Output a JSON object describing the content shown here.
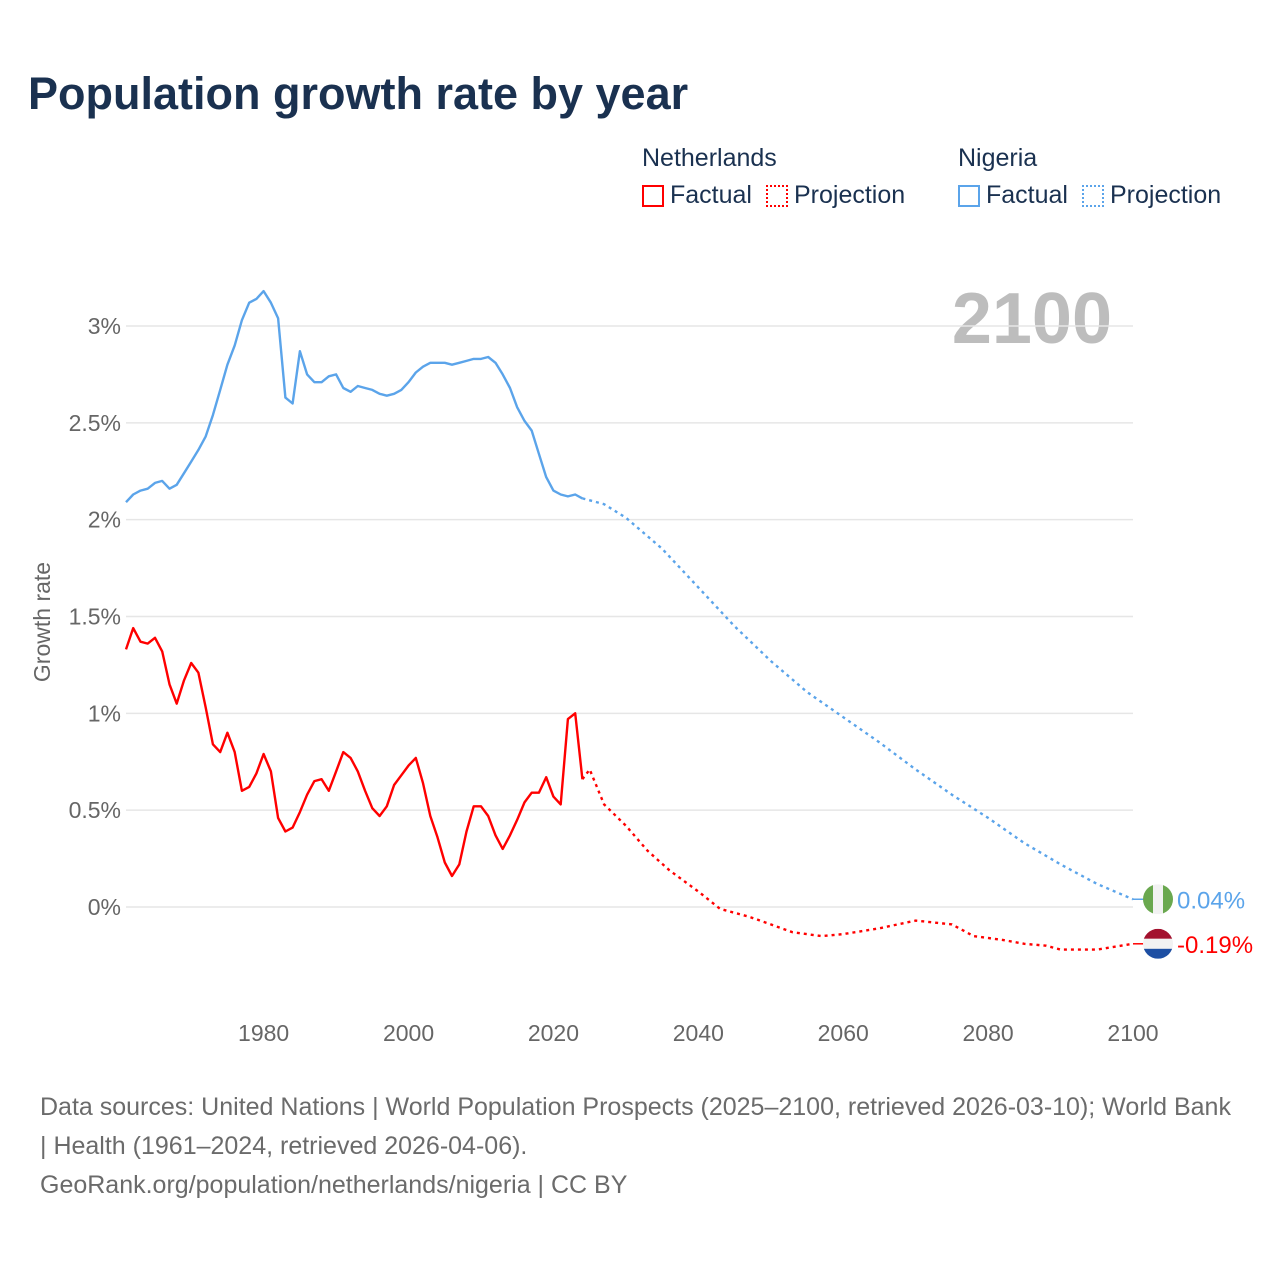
{
  "title": "Population growth rate by year",
  "legend": [
    {
      "group": "Netherlands",
      "items": [
        {
          "label": "Factual",
          "style": "solid"
        },
        {
          "label": "Projection",
          "style": "dotted"
        }
      ],
      "color": "#ff0000"
    },
    {
      "group": "Nigeria",
      "items": [
        {
          "label": "Factual",
          "style": "solid"
        },
        {
          "label": "Projection",
          "style": "dotted"
        }
      ],
      "color": "#5ba4ea"
    }
  ],
  "year_label": "2100",
  "footer": {
    "sources": "Data sources: United Nations | World Population Prospects (2025–2100, retrieved 2026-03-10); World Bank | Health (1961–2024, retrieved 2026-04-06).",
    "credit": "GeoRank.org/population/netherlands/nigeria | CC BY"
  },
  "chart_data": {
    "type": "line",
    "title": "Population growth rate by year",
    "xlabel": "",
    "ylabel": "Growth rate",
    "xlim": [
      1961,
      2100
    ],
    "ylim": [
      -0.5,
      3.3
    ],
    "grid": true,
    "x_ticks": [
      {
        "value": 1980,
        "label": "1980"
      },
      {
        "value": 2000,
        "label": "2000"
      },
      {
        "value": 2020,
        "label": "2020"
      },
      {
        "value": 2040,
        "label": "2040"
      },
      {
        "value": 2060,
        "label": "2060"
      },
      {
        "value": 2080,
        "label": "2080"
      },
      {
        "value": 2100,
        "label": "2100"
      }
    ],
    "y_ticks": [
      {
        "value": 0,
        "label": "0%"
      },
      {
        "value": 0.5,
        "label": "0.5%"
      },
      {
        "value": 1,
        "label": "1%"
      },
      {
        "value": 1.5,
        "label": "1.5%"
      },
      {
        "value": 2,
        "label": "2%"
      },
      {
        "value": 2.5,
        "label": "2.5%"
      },
      {
        "value": 3,
        "label": "3%"
      }
    ],
    "series": [
      {
        "name": "Netherlands",
        "color": "#ff0000",
        "flag": "netherlands-flag",
        "end_label": "-0.19%",
        "end_value": -0.19,
        "factual": {
          "x": [
            1961,
            1962,
            1963,
            1964,
            1965,
            1966,
            1967,
            1968,
            1969,
            1970,
            1971,
            1972,
            1973,
            1974,
            1975,
            1976,
            1977,
            1978,
            1979,
            1980,
            1981,
            1982,
            1983,
            1984,
            1985,
            1986,
            1987,
            1988,
            1989,
            1990,
            1991,
            1992,
            1993,
            1994,
            1995,
            1996,
            1997,
            1998,
            1999,
            2000,
            2001,
            2002,
            2003,
            2004,
            2005,
            2006,
            2007,
            2008,
            2009,
            2010,
            2011,
            2012,
            2013,
            2014,
            2015,
            2016,
            2017,
            2018,
            2019,
            2020,
            2021,
            2022,
            2023,
            2024
          ],
          "y": [
            1.33,
            1.44,
            1.37,
            1.36,
            1.39,
            1.32,
            1.15,
            1.05,
            1.17,
            1.26,
            1.21,
            1.03,
            0.84,
            0.8,
            0.9,
            0.8,
            0.6,
            0.62,
            0.69,
            0.79,
            0.7,
            0.46,
            0.39,
            0.41,
            0.49,
            0.58,
            0.65,
            0.66,
            0.6,
            0.7,
            0.8,
            0.77,
            0.7,
            0.6,
            0.51,
            0.47,
            0.52,
            0.63,
            0.68,
            0.73,
            0.77,
            0.64,
            0.47,
            0.36,
            0.23,
            0.16,
            0.22,
            0.39,
            0.52,
            0.52,
            0.47,
            0.37,
            0.3,
            0.37,
            0.45,
            0.54,
            0.59,
            0.59,
            0.67,
            0.57,
            0.53,
            0.97,
            1.0,
            0.66
          ]
        },
        "projection": {
          "x": [
            2025,
            2027,
            2030,
            2033,
            2036,
            2040,
            2043,
            2047,
            2050,
            2053,
            2057,
            2060,
            2065,
            2070,
            2075,
            2078,
            2082,
            2085,
            2088,
            2090,
            2095,
            2100
          ],
          "y": [
            0.71,
            0.53,
            0.42,
            0.29,
            0.19,
            0.08,
            -0.01,
            -0.05,
            -0.09,
            -0.13,
            -0.15,
            -0.14,
            -0.11,
            -0.07,
            -0.09,
            -0.15,
            -0.17,
            -0.19,
            -0.2,
            -0.22,
            -0.22,
            -0.19
          ]
        }
      },
      {
        "name": "Nigeria",
        "color": "#5ba4ea",
        "flag": "nigeria-flag",
        "end_label": "0.04%",
        "end_value": 0.04,
        "factual": {
          "x": [
            1961,
            1962,
            1963,
            1964,
            1965,
            1966,
            1967,
            1968,
            1969,
            1970,
            1971,
            1972,
            1973,
            1974,
            1975,
            1976,
            1977,
            1978,
            1979,
            1980,
            1981,
            1982,
            1983,
            1984,
            1985,
            1986,
            1987,
            1988,
            1989,
            1990,
            1991,
            1992,
            1993,
            1994,
            1995,
            1996,
            1997,
            1998,
            1999,
            2000,
            2001,
            2002,
            2003,
            2004,
            2005,
            2006,
            2007,
            2008,
            2009,
            2010,
            2011,
            2012,
            2013,
            2014,
            2015,
            2016,
            2017,
            2018,
            2019,
            2020,
            2021,
            2022,
            2023,
            2024
          ],
          "y": [
            2.09,
            2.13,
            2.15,
            2.16,
            2.19,
            2.2,
            2.16,
            2.18,
            2.24,
            2.3,
            2.36,
            2.43,
            2.54,
            2.67,
            2.8,
            2.9,
            3.03,
            3.12,
            3.14,
            3.18,
            3.12,
            3.04,
            2.63,
            2.6,
            2.87,
            2.75,
            2.71,
            2.71,
            2.74,
            2.75,
            2.68,
            2.66,
            2.69,
            2.68,
            2.67,
            2.65,
            2.64,
            2.65,
            2.67,
            2.71,
            2.76,
            2.79,
            2.81,
            2.81,
            2.81,
            2.8,
            2.81,
            2.82,
            2.83,
            2.83,
            2.84,
            2.81,
            2.75,
            2.68,
            2.58,
            2.51,
            2.46,
            2.34,
            2.22,
            2.15,
            2.13,
            2.12,
            2.13,
            2.11
          ]
        },
        "projection": {
          "x": [
            2025,
            2027,
            2030,
            2035,
            2040,
            2045,
            2050,
            2055,
            2060,
            2065,
            2070,
            2075,
            2080,
            2085,
            2090,
            2095,
            2100
          ],
          "y": [
            2.1,
            2.08,
            2.01,
            1.85,
            1.65,
            1.45,
            1.27,
            1.11,
            0.98,
            0.85,
            0.71,
            0.58,
            0.46,
            0.33,
            0.22,
            0.12,
            0.04
          ]
        }
      }
    ]
  }
}
